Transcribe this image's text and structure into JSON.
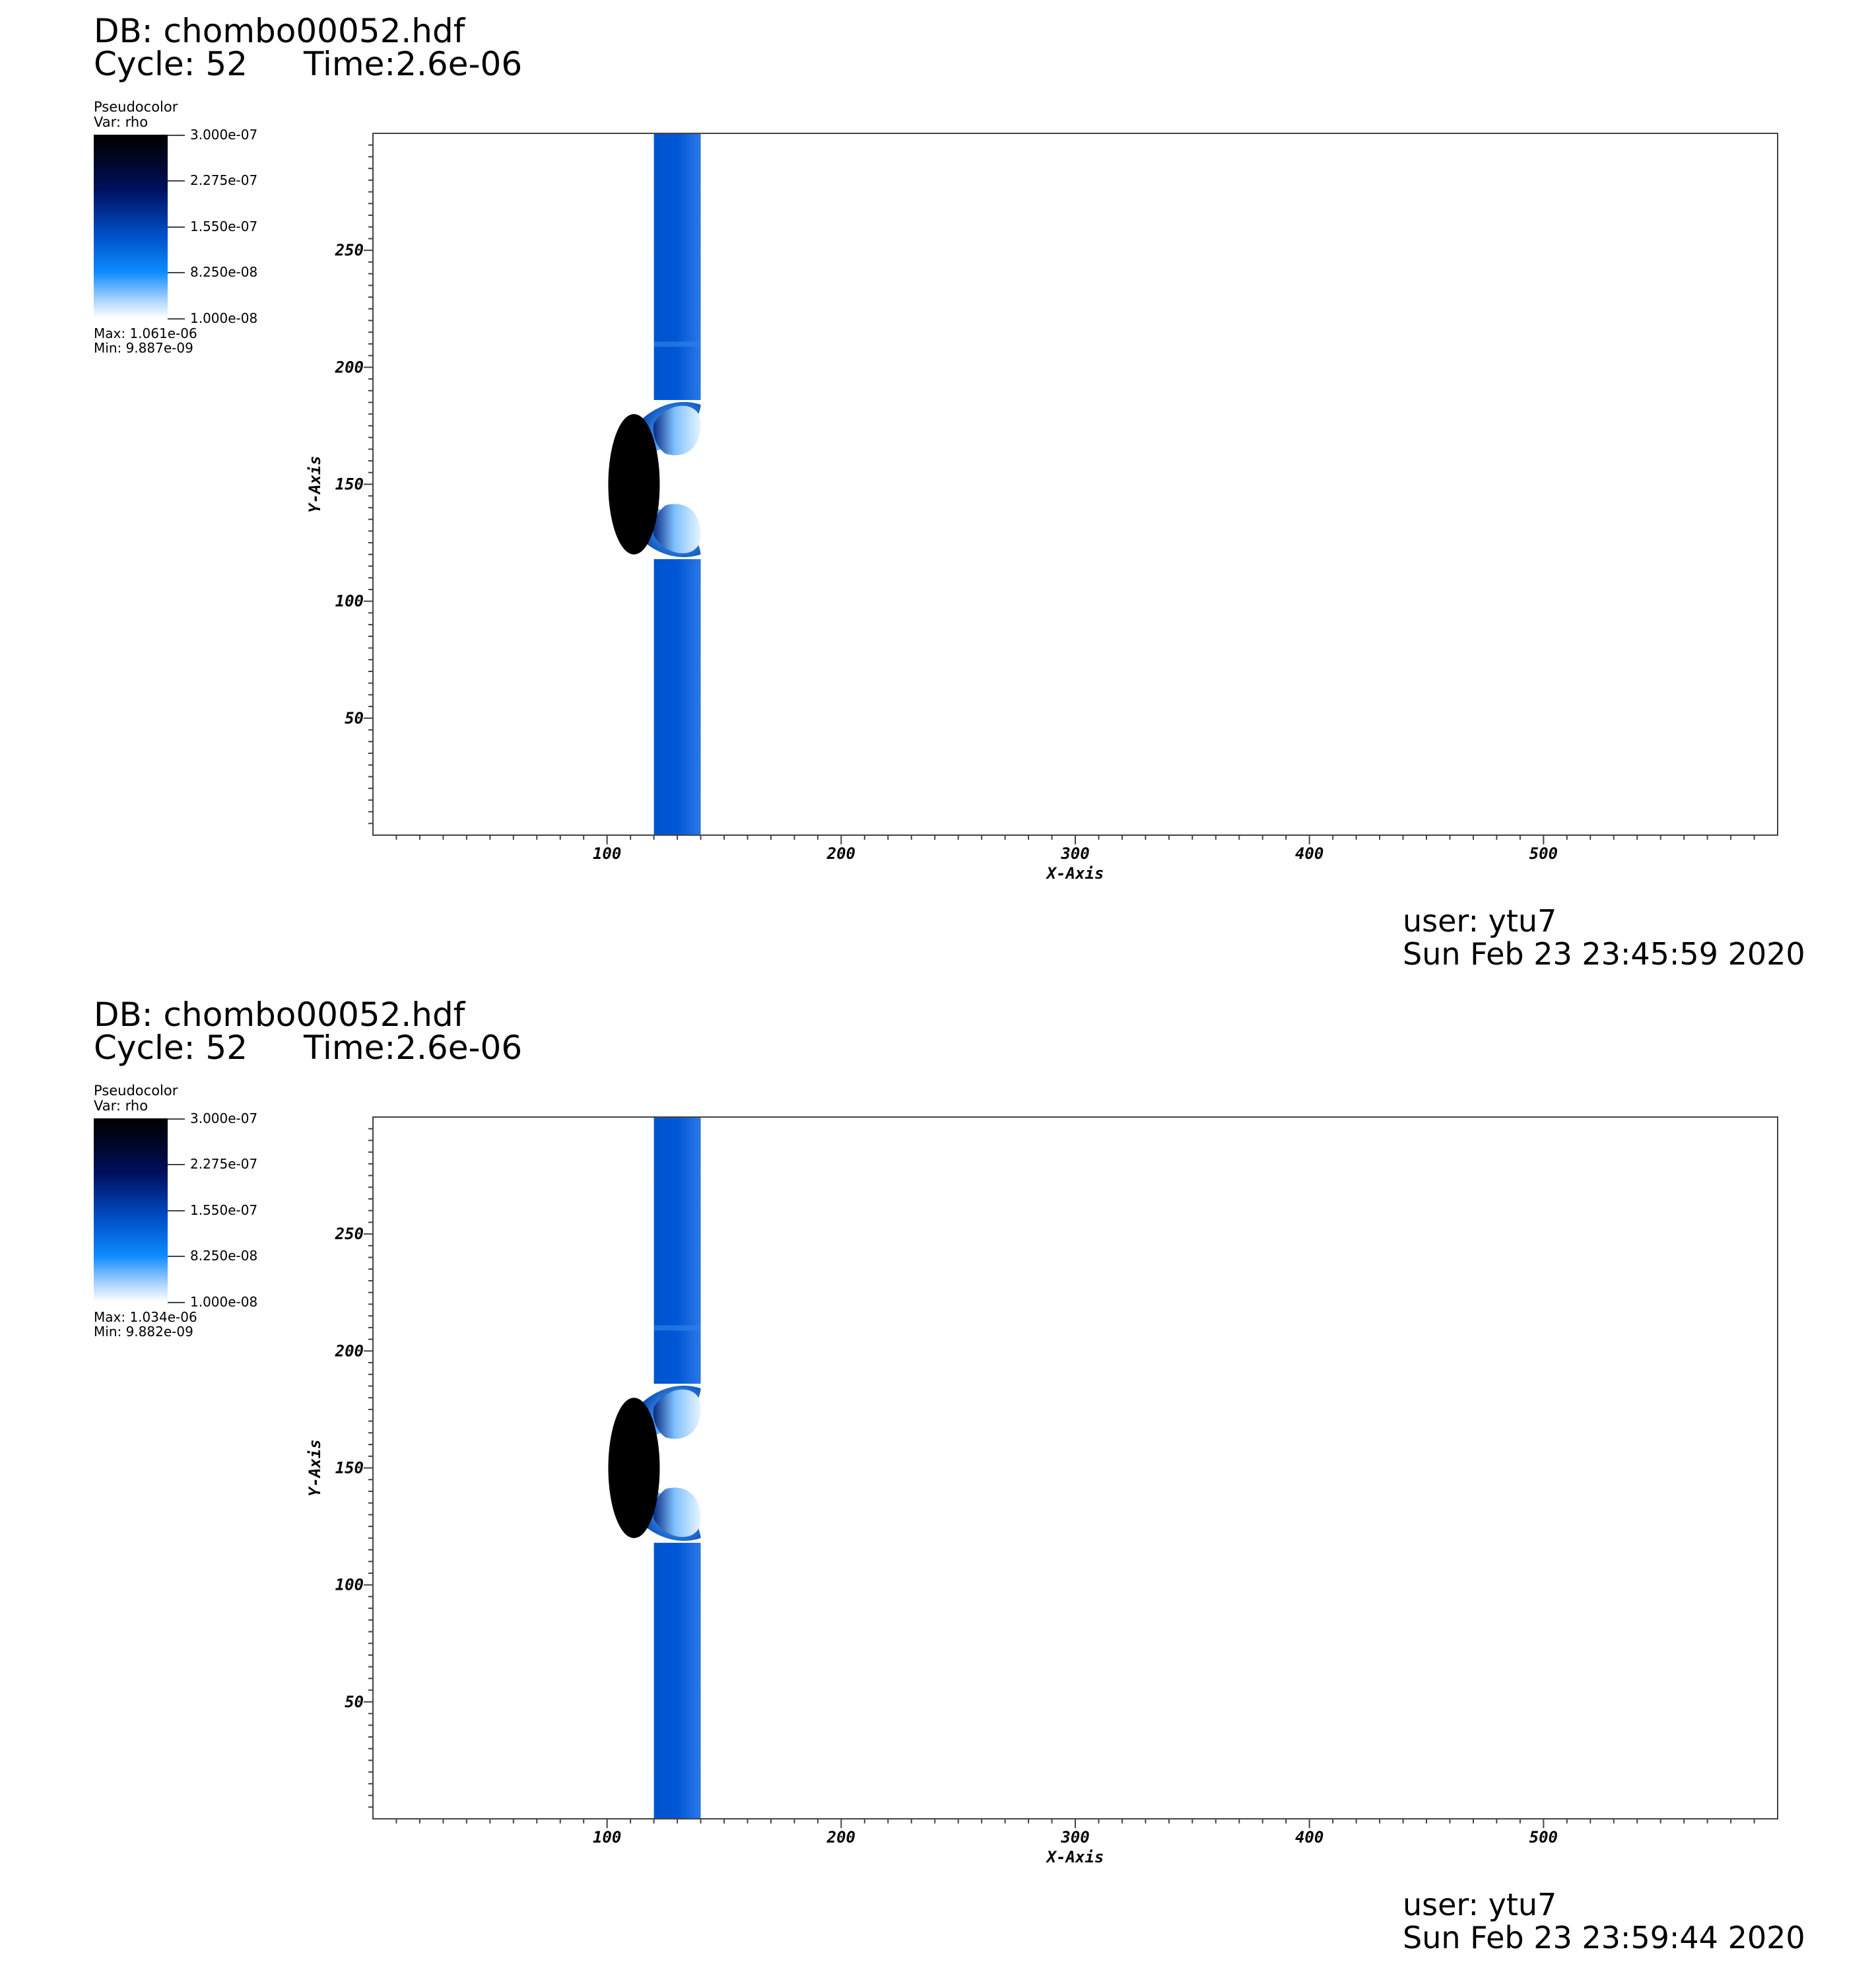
{
  "panels": [
    {
      "db_title": "DB: chombo00052.hdf",
      "cycle": "Cycle: 52",
      "time": "Time:2.6e-06",
      "legend": {
        "title": "Pseudocolor",
        "var": "Var: rho",
        "ticks": [
          "3.000e-07",
          "2.275e-07",
          "1.550e-07",
          "8.250e-08",
          "1.000e-08"
        ],
        "max": "Max:  1.061e-06",
        "min": "Min:  9.887e-09"
      },
      "user": "user: ytu7",
      "date": "Sun Feb 23 23:45:59 2020"
    },
    {
      "db_title": "DB: chombo00052.hdf",
      "cycle": "Cycle: 52",
      "time": "Time:2.6e-06",
      "legend": {
        "title": "Pseudocolor",
        "var": "Var: rho",
        "ticks": [
          "3.000e-07",
          "2.275e-07",
          "1.550e-07",
          "8.250e-08",
          "1.000e-08"
        ],
        "max": "Max:  1.034e-06",
        "min": "Min:  9.882e-09"
      },
      "user": "user: ytu7",
      "date": "Sun Feb 23 23:59:44 2020"
    }
  ],
  "chart_data": {
    "type": "heatmap",
    "xlabel": "X-Axis",
    "ylabel": "Y-Axis",
    "xlim": [
      0,
      600
    ],
    "ylim": [
      0,
      300
    ],
    "xticks": [
      100,
      200,
      300,
      400,
      500
    ],
    "yticks": [
      50,
      100,
      150,
      200,
      250
    ],
    "band_x": [
      120,
      140
    ],
    "colors": {
      "band": "#0057d2",
      "dark_core": "#000000",
      "plot_background": "#ffffff"
    }
  }
}
